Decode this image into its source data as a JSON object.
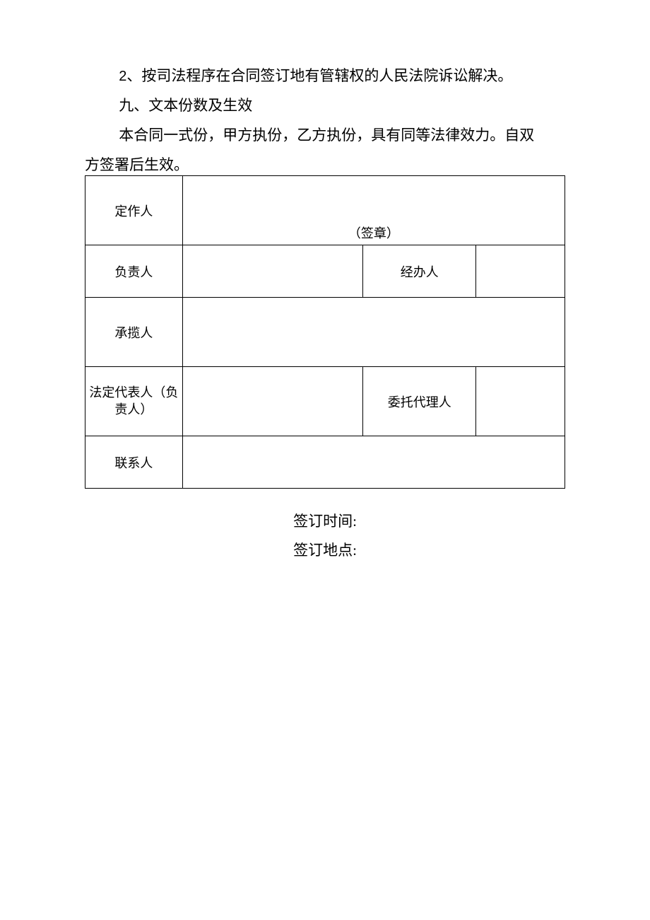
{
  "paragraphs": {
    "p1_num": "2",
    "p1_sep": "、",
    "p1_text": "按司法程序在合同签订地有管辖权的人民法院诉讼解决。",
    "p2": "九、文本份数及生效",
    "p3_line1": "本合同一式份，甲方执份，乙方执份，具有同等法律效力。自双",
    "p3_line2": "方签署后生效。"
  },
  "table": {
    "row1_label": "定作人",
    "row1_seal": "（签章）",
    "row2_label": "负责人",
    "row2_label2": "经办人",
    "row3_label": "承揽人",
    "row4_label_l1": "法定代表人（负",
    "row4_label_l2": "责人）",
    "row4_label2": "委托代理人",
    "row5_label": "联系人"
  },
  "footer": {
    "time_label": "签订时间:",
    "place_label": "签订地点:"
  }
}
